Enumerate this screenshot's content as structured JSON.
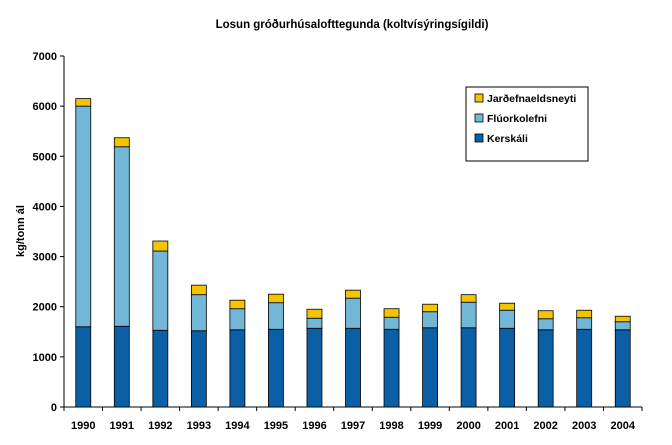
{
  "chart_data": {
    "type": "bar",
    "stacked": true,
    "title": "Losun gróðurhúsalofttegunda (koltvísýringsígildi)",
    "xlabel": "",
    "ylabel": "kg/tonn ál",
    "ylim": [
      0,
      7000
    ],
    "yticks": [
      0,
      1000,
      2000,
      3000,
      4000,
      5000,
      6000,
      7000
    ],
    "grid": false,
    "legend_position": "top-right",
    "categories": [
      "1990",
      "1991",
      "1992",
      "1993",
      "1994",
      "1995",
      "1996",
      "1997",
      "1998",
      "1999",
      "2000",
      "2001",
      "2002",
      "2003",
      "2004"
    ],
    "series": [
      {
        "name": "Kerskáli",
        "color": "#0b5fa5",
        "values": [
          1600,
          1610,
          1530,
          1520,
          1540,
          1550,
          1570,
          1570,
          1550,
          1580,
          1580,
          1570,
          1540,
          1550,
          1540
        ]
      },
      {
        "name": "Flúorkolefni",
        "color": "#72b7d8",
        "values": [
          4400,
          3580,
          1580,
          720,
          420,
          530,
          200,
          600,
          240,
          320,
          510,
          360,
          220,
          230,
          160
        ]
      },
      {
        "name": "Jarðefnaeldsneyti",
        "color": "#f5c400",
        "values": [
          150,
          180,
          200,
          190,
          170,
          170,
          180,
          160,
          170,
          150,
          150,
          140,
          160,
          150,
          110
        ]
      }
    ]
  }
}
